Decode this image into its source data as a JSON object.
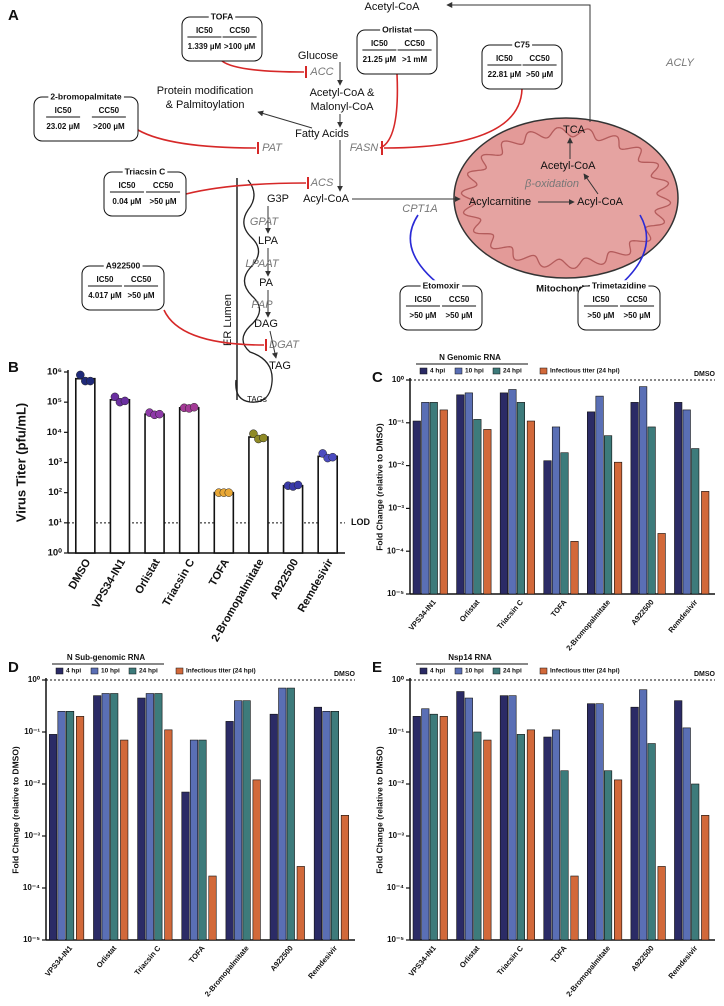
{
  "diagram": {
    "label": "A",
    "texts": [
      "Acetyl-CoA",
      "ACLY",
      "Glucose",
      "ACC",
      "Acetyl-CoA &",
      "Malonyl-CoA",
      "Protein modification",
      "& Palmitoylation",
      "FASN",
      "PAT",
      "Fatty Acids",
      "ACS",
      "G3P",
      "Acyl-CoA",
      "GPAT",
      "LPA",
      "LPAAT",
      "PA",
      "PAP",
      "DAG",
      "DGAT",
      "TAG",
      "TAGs",
      "ER Lumen",
      "CPT1A",
      "Acylcarnitine",
      "Acyl-CoA",
      "β-oxidation",
      "Acetyl-CoA",
      "TCA",
      "Mitochondria"
    ],
    "inhibitors": [
      {
        "name": "TOFA",
        "color": "#d62828",
        "ic50_label": "IC50",
        "ic50": "1.339 µM",
        "cc50_label": "CC50",
        "cc50": ">100 µM"
      },
      {
        "name": "Orlistat",
        "color": "#d62828",
        "ic50_label": "IC50",
        "ic50": "21.25 µM",
        "cc50_label": "CC50",
        "cc50": ">1 mM"
      },
      {
        "name": "C75",
        "color": "#d62828",
        "ic50_label": "IC50",
        "ic50": "22.81 µM",
        "cc50_label": "CC50",
        "cc50": ">50 µM"
      },
      {
        "name": "2-bromopalmitate",
        "color": "#d62828",
        "ic50_label": "IC50",
        "ic50": "23.02 µM",
        "cc50_label": "CC50",
        "cc50": ">200 µM"
      },
      {
        "name": "Triacsin C",
        "color": "#d62828",
        "ic50_label": "IC50",
        "ic50": "0.04 µM",
        "cc50_label": "CC50",
        "cc50": ">50 µM"
      },
      {
        "name": "A922500",
        "color": "#d62828",
        "ic50_label": "IC50",
        "ic50": "4.017 µM",
        "cc50_label": "CC50",
        "cc50": ">50 µM"
      },
      {
        "name": "Etomoxir",
        "color": "#2a2ad6",
        "ic50_label": "IC50",
        "ic50": ">50 µM",
        "cc50_label": "CC50",
        "cc50": ">50 µM"
      },
      {
        "name": "Trimetazidine",
        "color": "#2a2ad6",
        "ic50_label": "IC50",
        "ic50": ">50 µM",
        "cc50_label": "CC50",
        "cc50": ">50 µM"
      }
    ]
  },
  "chart_data": [
    {
      "type": "bar",
      "panel": "B",
      "ylabel": "Virus Titer (pfu/mL)",
      "log": true,
      "categories": [
        "DMSO",
        "VPS34-IN1",
        "Orlistat",
        "Triacsin C",
        "TOFA",
        "2-Bromopalmitate",
        "A922500",
        "Remdesivir"
      ],
      "values": [
        600000,
        120000,
        40000,
        65000,
        100,
        7000,
        170,
        1600
      ],
      "color": "#ffffff",
      "points": [
        [
          800000,
          500000,
          500000
        ],
        [
          150000,
          100000,
          110000
        ],
        [
          45000,
          38000,
          40000
        ],
        [
          65000,
          62000,
          68000
        ],
        [
          100,
          100,
          100
        ],
        [
          9000,
          6000,
          6500
        ],
        [
          170,
          160,
          180
        ],
        [
          2000,
          1400,
          1500
        ]
      ],
      "point_colors": [
        "#1f2a7a",
        "#6a2fa0",
        "#8e3aa8",
        "#a33a96",
        "#e8a735",
        "#8f8a25",
        "#3a3aa8",
        "#4b4bc0"
      ],
      "ylim": [
        1,
        1000000
      ],
      "yticks": [
        {
          "value": 1,
          "label": "10⁰"
        },
        {
          "value": 10,
          "label": "10¹"
        },
        {
          "value": 100,
          "label": "10²"
        },
        {
          "value": 1000,
          "label": "10³"
        },
        {
          "value": 10000,
          "label": "10⁴"
        },
        {
          "value": 100000,
          "label": "10⁵"
        },
        {
          "value": 1000000,
          "label": "10⁶"
        }
      ],
      "ref_line": {
        "value": 10,
        "label": "LOD"
      }
    },
    {
      "type": "grouped_bar",
      "panel": "C",
      "title": "N Genomic RNA",
      "ylabel": "Fold Change (relative to DMSO)",
      "log": true,
      "categories": [
        "VPS34-IN1",
        "Orlistat",
        "Triacsin C",
        "TOFA",
        "2-Bromopalmitate",
        "A922500",
        "Remdesivir"
      ],
      "series": [
        {
          "name": "4 hpi",
          "color": "#2b2b66",
          "values": [
            0.11,
            0.45,
            0.5,
            0.013,
            0.18,
            0.3,
            0.3
          ]
        },
        {
          "name": "10 hpi",
          "color": "#5a6fb5",
          "values": [
            0.3,
            0.5,
            0.6,
            0.08,
            0.42,
            0.7,
            0.2
          ]
        },
        {
          "name": "24 hpi",
          "color": "#3d7b7b",
          "values": [
            0.3,
            0.12,
            0.3,
            0.02,
            0.05,
            0.08,
            0.025
          ]
        },
        {
          "name": "Infectious titer (24 hpi)",
          "color": "#d2693a",
          "values": [
            0.2,
            0.07,
            0.11,
            0.00017,
            0.012,
            0.00026,
            0.0025
          ]
        }
      ],
      "ylim": [
        1e-05,
        1
      ],
      "yticks": [
        {
          "value": 1e-05,
          "label": "10⁻⁵"
        },
        {
          "value": 0.0001,
          "label": "10⁻⁴"
        },
        {
          "value": 0.001,
          "label": "10⁻³"
        },
        {
          "value": 0.01,
          "label": "10⁻²"
        },
        {
          "value": 0.1,
          "label": "10⁻¹"
        },
        {
          "value": 1,
          "label": "10⁰"
        }
      ],
      "ref_line": {
        "value": 1,
        "label": "DMSO"
      }
    },
    {
      "type": "grouped_bar",
      "panel": "D",
      "title": "N Sub-genomic RNA",
      "ylabel": "Fold Change (relative to DMSO)",
      "log": true,
      "categories": [
        "VPS34-IN1",
        "Orlistat",
        "Triacsin C",
        "TOFA",
        "2-Bromopalmitate",
        "A922500",
        "Remdesivir"
      ],
      "series": [
        {
          "name": "4 hpi",
          "color": "#2b2b66",
          "values": [
            0.09,
            0.5,
            0.45,
            0.007,
            0.16,
            0.22,
            0.3
          ]
        },
        {
          "name": "10 hpi",
          "color": "#5a6fb5",
          "values": [
            0.25,
            0.55,
            0.55,
            0.07,
            0.4,
            0.7,
            0.25
          ]
        },
        {
          "name": "24 hpi",
          "color": "#3d7b7b",
          "values": [
            0.25,
            0.55,
            0.55,
            0.07,
            0.4,
            0.7,
            0.25
          ]
        },
        {
          "name": "Infectious titer (24 hpi)",
          "color": "#d2693a",
          "values": [
            0.2,
            0.07,
            0.11,
            0.00017,
            0.012,
            0.00026,
            0.0025
          ]
        }
      ],
      "ylim": [
        1e-05,
        1
      ],
      "yticks": [
        {
          "value": 1e-05,
          "label": "10⁻⁵"
        },
        {
          "value": 0.0001,
          "label": "10⁻⁴"
        },
        {
          "value": 0.001,
          "label": "10⁻³"
        },
        {
          "value": 0.01,
          "label": "10⁻²"
        },
        {
          "value": 0.1,
          "label": "10⁻¹"
        },
        {
          "value": 1,
          "label": "10⁰"
        }
      ],
      "ref_line": {
        "value": 1,
        "label": "DMSO"
      }
    },
    {
      "type": "grouped_bar",
      "panel": "E",
      "title": "Nsp14 RNA",
      "ylabel": "Fold Change (relative to DMSO)",
      "log": true,
      "categories": [
        "VPS34-IN1",
        "Orlistat",
        "Triacsin C",
        "TOFA",
        "2-Bromopalmitate",
        "A922500",
        "Remdesivir"
      ],
      "series": [
        {
          "name": "4 hpi",
          "color": "#2b2b66",
          "values": [
            0.2,
            0.6,
            0.5,
            0.08,
            0.35,
            0.3,
            0.4
          ]
        },
        {
          "name": "10 hpi",
          "color": "#5a6fb5",
          "values": [
            0.28,
            0.45,
            0.5,
            0.11,
            0.35,
            0.65,
            0.12
          ]
        },
        {
          "name": "24 hpi",
          "color": "#3d7b7b",
          "values": [
            0.22,
            0.1,
            0.09,
            0.018,
            0.018,
            0.06,
            0.01
          ]
        },
        {
          "name": "Infectious titer (24 hpi)",
          "color": "#d2693a",
          "values": [
            0.2,
            0.07,
            0.11,
            0.00017,
            0.012,
            0.00026,
            0.0025
          ]
        }
      ],
      "ylim": [
        1e-05,
        1
      ],
      "yticks": [
        {
          "value": 1e-05,
          "label": "10⁻⁵"
        },
        {
          "value": 0.0001,
          "label": "10⁻⁴"
        },
        {
          "value": 0.001,
          "label": "10⁻³"
        },
        {
          "value": 0.01,
          "label": "10⁻²"
        },
        {
          "value": 0.1,
          "label": "10⁻¹"
        },
        {
          "value": 1,
          "label": "10⁰"
        }
      ],
      "ref_line": {
        "value": 1,
        "label": "DMSO"
      }
    }
  ]
}
